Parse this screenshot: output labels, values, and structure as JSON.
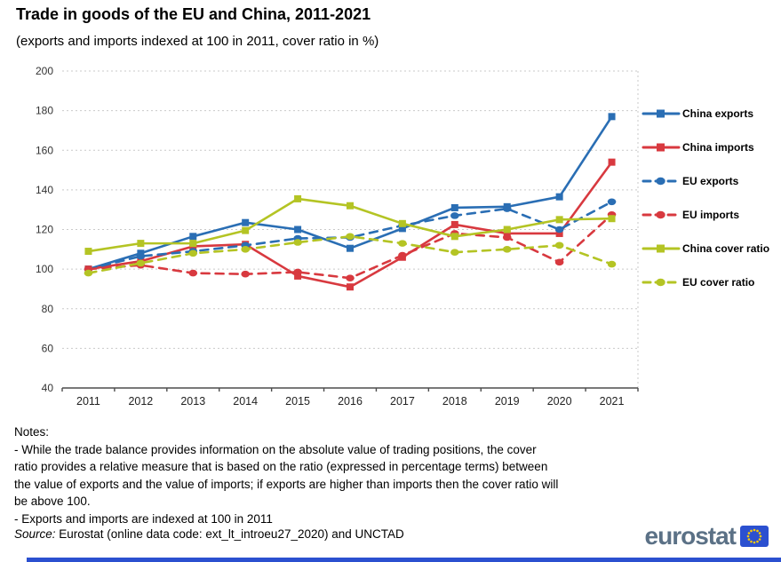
{
  "title": "Trade in goods of the EU and China, 2011-2021",
  "subtitle": "(exports and imports indexed at 100 in 2011, cover ratio in %)",
  "chart_data": {
    "type": "line",
    "x": [
      2011,
      2012,
      2013,
      2014,
      2015,
      2016,
      2017,
      2018,
      2019,
      2020,
      2021
    ],
    "series": [
      {
        "name": "China exports",
        "color": "#2a6eb4",
        "dash": "solid",
        "marker": "square",
        "values": [
          100,
          108,
          116.5,
          123.5,
          120,
          110.5,
          120.5,
          131,
          131.5,
          136.5,
          177
        ]
      },
      {
        "name": "China imports",
        "color": "#d8393f",
        "dash": "solid",
        "marker": "square",
        "values": [
          100,
          104,
          111.5,
          112.5,
          96.5,
          91,
          106,
          122.5,
          118,
          118,
          154
        ]
      },
      {
        "name": "EU exports",
        "color": "#2a6eb4",
        "dash": "dashed",
        "marker": "circle",
        "values": [
          100,
          106.5,
          109,
          112,
          115.5,
          116,
          122,
          127,
          130.5,
          120,
          134
        ]
      },
      {
        "name": "EU imports",
        "color": "#d8393f",
        "dash": "dashed",
        "marker": "circle",
        "values": [
          100,
          102,
          98,
          97.5,
          98.5,
          95.5,
          107,
          118,
          116,
          103.5,
          127.5
        ]
      },
      {
        "name": "China cover ratio",
        "color": "#b4c424",
        "dash": "solid",
        "marker": "square",
        "values": [
          109,
          113,
          113,
          119.5,
          135.5,
          132,
          123,
          116.5,
          120,
          125,
          125.5
        ]
      },
      {
        "name": "EU cover ratio",
        "color": "#b4c424",
        "dash": "dashed",
        "marker": "circle",
        "values": [
          98,
          103,
          108,
          110,
          113.5,
          116.5,
          113,
          108.5,
          110,
          112,
          102.5
        ]
      }
    ],
    "ylim": [
      40,
      200
    ],
    "ytick_step": 20,
    "yticks": [
      40,
      60,
      80,
      100,
      120,
      140,
      160,
      180,
      200
    ],
    "grid": "horizontal-dotted",
    "legend_position": "right"
  },
  "notes": [
    "Notes:",
    "- While the trade balance provides information on the absolute value of trading positions, the cover",
    "ratio provides a relative measure that is based on the ratio (expressed in percentage terms) between",
    "the value of exports and the value of imports; if exports are higher than imports then the cover ratio will",
    "be above 100.",
    " - Exports and imports are indexed at 100 in 2011"
  ],
  "source": {
    "label": "Source:",
    "text": " Eurostat (online data code: ext_lt_introeu27_2020) and UNCTAD"
  },
  "logo": {
    "text": "eurostat"
  },
  "colors": {
    "blue": "#2a6eb4",
    "red": "#d8393f",
    "green": "#b4c424",
    "grid": "#c9c9c9",
    "axis": "#4d4d4d",
    "logo_text": "#5b7186",
    "eu_blue": "#2b50d0",
    "star_yellow": "#ffcc00"
  }
}
